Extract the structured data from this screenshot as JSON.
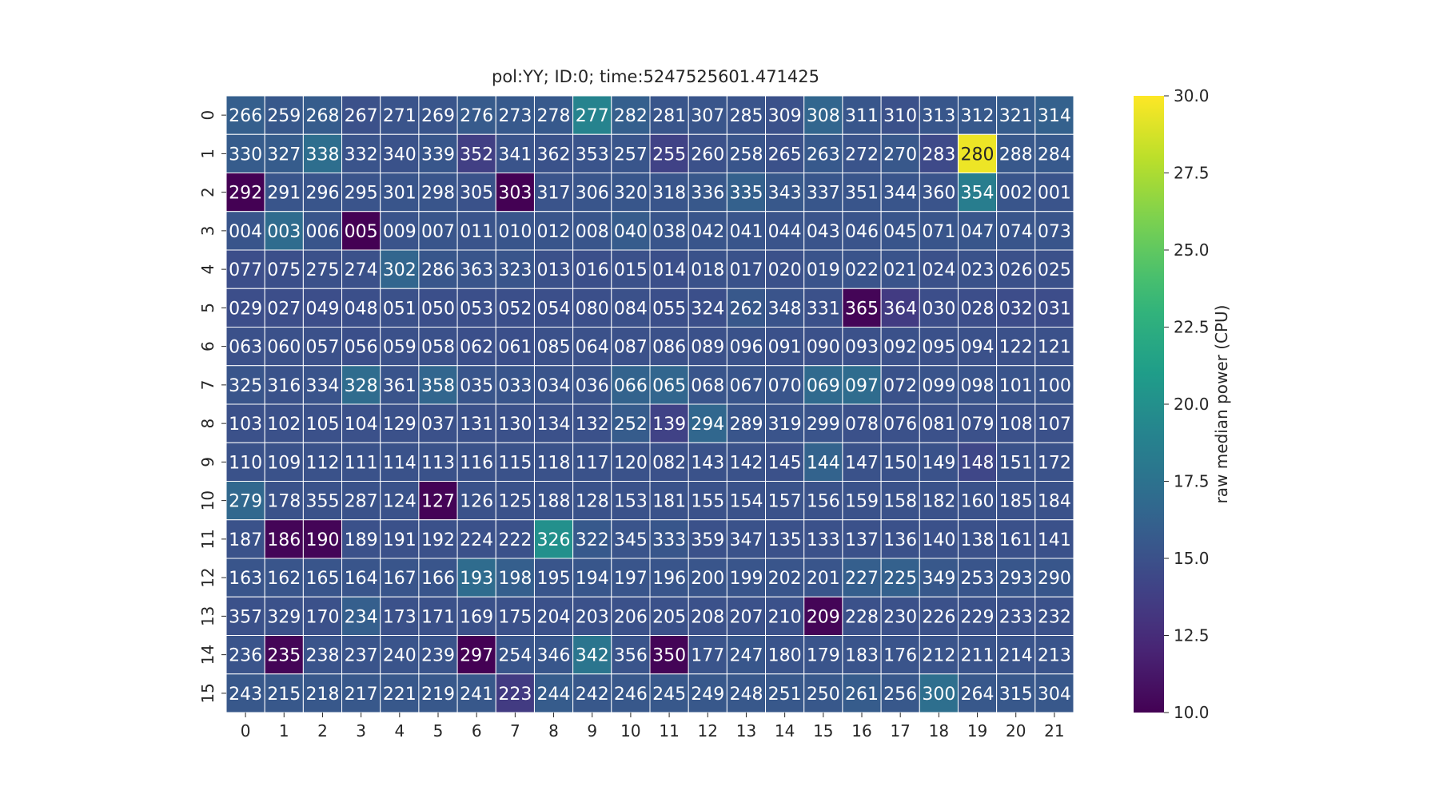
{
  "chart_data": {
    "type": "heatmap",
    "title": "pol:YY; ID:0; time:5247525601.471425",
    "xlabel": "",
    "ylabel": "",
    "colorbar_label": "raw median power (CPU)",
    "colormap": "viridis",
    "vmin": 10.0,
    "vmax": 30.0,
    "colorbar_ticks": [
      "10.0",
      "12.5",
      "15.0",
      "17.5",
      "20.0",
      "22.5",
      "25.0",
      "27.5",
      "30.0"
    ],
    "x_ticks": [
      "0",
      "1",
      "2",
      "3",
      "4",
      "5",
      "6",
      "7",
      "8",
      "9",
      "10",
      "11",
      "12",
      "13",
      "14",
      "15",
      "16",
      "17",
      "18",
      "19",
      "20",
      "21"
    ],
    "y_ticks": [
      "0",
      "1",
      "2",
      "3",
      "4",
      "5",
      "6",
      "7",
      "8",
      "9",
      "10",
      "11",
      "12",
      "13",
      "14",
      "15"
    ],
    "annotations": [
      [
        "266",
        "259",
        "268",
        "267",
        "271",
        "269",
        "276",
        "273",
        "278",
        "277",
        "282",
        "281",
        "307",
        "285",
        "309",
        "308",
        "311",
        "310",
        "313",
        "312",
        "321",
        "314"
      ],
      [
        "330",
        "327",
        "338",
        "332",
        "340",
        "339",
        "352",
        "341",
        "362",
        "353",
        "257",
        "255",
        "260",
        "258",
        "265",
        "263",
        "272",
        "270",
        "283",
        "280",
        "288",
        "284"
      ],
      [
        "292",
        "291",
        "296",
        "295",
        "301",
        "298",
        "305",
        "303",
        "317",
        "306",
        "320",
        "318",
        "336",
        "335",
        "343",
        "337",
        "351",
        "344",
        "360",
        "354",
        "002",
        "001"
      ],
      [
        "004",
        "003",
        "006",
        "005",
        "009",
        "007",
        "011",
        "010",
        "012",
        "008",
        "040",
        "038",
        "042",
        "041",
        "044",
        "043",
        "046",
        "045",
        "071",
        "047",
        "074",
        "073"
      ],
      [
        "077",
        "075",
        "275",
        "274",
        "302",
        "286",
        "363",
        "323",
        "013",
        "016",
        "015",
        "014",
        "018",
        "017",
        "020",
        "019",
        "022",
        "021",
        "024",
        "023",
        "026",
        "025"
      ],
      [
        "029",
        "027",
        "049",
        "048",
        "051",
        "050",
        "053",
        "052",
        "054",
        "080",
        "084",
        "055",
        "324",
        "262",
        "348",
        "331",
        "365",
        "364",
        "030",
        "028",
        "032",
        "031"
      ],
      [
        "063",
        "060",
        "057",
        "056",
        "059",
        "058",
        "062",
        "061",
        "085",
        "064",
        "087",
        "086",
        "089",
        "096",
        "091",
        "090",
        "093",
        "092",
        "095",
        "094",
        "122",
        "121"
      ],
      [
        "325",
        "316",
        "334",
        "328",
        "361",
        "358",
        "035",
        "033",
        "034",
        "036",
        "066",
        "065",
        "068",
        "067",
        "070",
        "069",
        "097",
        "072",
        "099",
        "098",
        "101",
        "100"
      ],
      [
        "103",
        "102",
        "105",
        "104",
        "129",
        "037",
        "131",
        "130",
        "134",
        "132",
        "252",
        "139",
        "294",
        "289",
        "319",
        "299",
        "078",
        "076",
        "081",
        "079",
        "108",
        "107"
      ],
      [
        "110",
        "109",
        "112",
        "111",
        "114",
        "113",
        "116",
        "115",
        "118",
        "117",
        "120",
        "082",
        "143",
        "142",
        "145",
        "144",
        "147",
        "150",
        "149",
        "148",
        "151",
        "172"
      ],
      [
        "279",
        "178",
        "355",
        "287",
        "124",
        "127",
        "126",
        "125",
        "188",
        "128",
        "153",
        "181",
        "155",
        "154",
        "157",
        "156",
        "159",
        "158",
        "182",
        "160",
        "185",
        "184"
      ],
      [
        "187",
        "186",
        "190",
        "189",
        "191",
        "192",
        "224",
        "222",
        "326",
        "322",
        "345",
        "333",
        "359",
        "347",
        "135",
        "133",
        "137",
        "136",
        "140",
        "138",
        "161",
        "141"
      ],
      [
        "163",
        "162",
        "165",
        "164",
        "167",
        "166",
        "193",
        "198",
        "195",
        "194",
        "197",
        "196",
        "200",
        "199",
        "202",
        "201",
        "227",
        "225",
        "349",
        "253",
        "293",
        "290"
      ],
      [
        "357",
        "329",
        "170",
        "234",
        "173",
        "171",
        "169",
        "175",
        "204",
        "203",
        "206",
        "205",
        "208",
        "207",
        "210",
        "209",
        "228",
        "230",
        "226",
        "229",
        "233",
        "232"
      ],
      [
        "236",
        "235",
        "238",
        "237",
        "240",
        "239",
        "297",
        "254",
        "346",
        "342",
        "356",
        "350",
        "177",
        "247",
        "180",
        "179",
        "183",
        "176",
        "212",
        "211",
        "214",
        "213"
      ],
      [
        "243",
        "215",
        "218",
        "217",
        "221",
        "219",
        "241",
        "223",
        "244",
        "242",
        "246",
        "245",
        "249",
        "248",
        "251",
        "250",
        "261",
        "256",
        "300",
        "264",
        "315",
        "304"
      ]
    ],
    "values": [
      [
        16.0,
        15.5,
        15.8,
        15.0,
        15.2,
        15.3,
        15.7,
        15.6,
        15.6,
        19.0,
        16.0,
        15.3,
        15.3,
        15.2,
        15.0,
        16.5,
        15.4,
        15.0,
        15.4,
        15.6,
        15.8,
        16.2
      ],
      [
        15.8,
        15.8,
        17.2,
        15.2,
        15.1,
        15.4,
        13.8,
        15.2,
        15.1,
        15.2,
        15.3,
        14.0,
        15.0,
        15.3,
        15.0,
        15.6,
        15.2,
        15.5,
        14.5,
        29.5,
        15.5,
        15.6
      ],
      [
        10.0,
        15.3,
        15.3,
        15.2,
        15.3,
        15.3,
        15.1,
        10.0,
        15.2,
        15.3,
        15.4,
        15.3,
        15.5,
        16.2,
        15.5,
        15.4,
        15.3,
        15.3,
        15.2,
        18.5,
        15.3,
        15.2
      ],
      [
        15.3,
        17.0,
        15.3,
        10.0,
        15.2,
        15.3,
        15.2,
        15.3,
        15.3,
        15.3,
        15.8,
        15.3,
        15.3,
        15.3,
        15.2,
        15.2,
        15.2,
        15.3,
        15.3,
        15.4,
        15.3,
        15.3
      ],
      [
        14.8,
        14.9,
        15.0,
        15.0,
        16.5,
        15.4,
        15.3,
        15.3,
        15.0,
        14.9,
        15.0,
        14.9,
        15.1,
        15.1,
        15.0,
        15.2,
        15.2,
        15.2,
        15.0,
        15.1,
        15.0,
        15.0
      ],
      [
        14.8,
        14.8,
        14.8,
        14.9,
        15.0,
        14.9,
        14.9,
        14.9,
        14.9,
        14.9,
        15.0,
        14.9,
        14.9,
        15.5,
        15.2,
        15.0,
        10.2,
        13.5,
        14.8,
        14.8,
        14.7,
        14.7
      ],
      [
        15.0,
        15.0,
        15.0,
        14.9,
        15.0,
        15.0,
        14.9,
        14.9,
        15.0,
        15.0,
        15.0,
        15.0,
        15.0,
        15.1,
        15.0,
        15.0,
        15.0,
        15.0,
        15.0,
        15.0,
        15.0,
        15.0
      ],
      [
        15.3,
        15.1,
        15.2,
        17.0,
        15.2,
        16.5,
        15.3,
        15.3,
        15.2,
        15.2,
        16.3,
        16.5,
        15.3,
        15.3,
        15.3,
        16.8,
        17.0,
        15.1,
        15.2,
        15.2,
        15.2,
        15.2
      ],
      [
        15.0,
        15.0,
        15.0,
        15.0,
        15.0,
        15.0,
        15.0,
        15.0,
        15.0,
        15.0,
        15.8,
        14.0,
        16.6,
        15.3,
        15.2,
        15.2,
        15.0,
        15.0,
        15.0,
        15.0,
        15.0,
        15.0
      ],
      [
        15.1,
        15.1,
        15.1,
        15.1,
        15.1,
        15.1,
        15.1,
        15.1,
        15.1,
        15.1,
        15.1,
        15.0,
        15.1,
        15.1,
        15.0,
        16.3,
        15.1,
        15.1,
        15.1,
        14.3,
        15.1,
        15.1
      ],
      [
        16.7,
        15.1,
        15.1,
        15.1,
        15.1,
        10.1,
        15.1,
        15.1,
        15.1,
        15.1,
        15.1,
        15.1,
        15.1,
        15.1,
        15.1,
        15.1,
        15.1,
        15.1,
        15.1,
        15.1,
        15.1,
        15.1
      ],
      [
        15.1,
        10.2,
        10.2,
        15.0,
        15.0,
        15.0,
        15.0,
        15.0,
        20.0,
        15.6,
        15.2,
        15.4,
        15.0,
        15.1,
        15.0,
        15.0,
        15.0,
        15.0,
        15.0,
        15.0,
        15.0,
        15.0
      ],
      [
        15.3,
        15.3,
        15.3,
        15.3,
        15.3,
        15.3,
        17.0,
        16.0,
        15.3,
        15.4,
        15.3,
        15.3,
        15.3,
        15.3,
        15.3,
        15.3,
        16.0,
        16.2,
        15.5,
        15.3,
        15.4,
        15.4
      ],
      [
        15.0,
        15.0,
        15.0,
        16.0,
        15.0,
        15.0,
        15.0,
        15.0,
        15.0,
        15.0,
        15.0,
        15.0,
        15.0,
        15.0,
        15.0,
        10.2,
        15.0,
        15.0,
        15.0,
        15.0,
        15.0,
        15.0
      ],
      [
        15.2,
        10.2,
        15.2,
        15.2,
        15.2,
        15.2,
        10.0,
        15.3,
        15.4,
        17.8,
        15.2,
        10.2,
        15.2,
        15.4,
        15.2,
        15.2,
        15.2,
        15.2,
        15.2,
        15.2,
        15.2,
        15.2
      ],
      [
        15.5,
        15.5,
        15.5,
        15.5,
        15.5,
        15.5,
        15.5,
        13.5,
        15.8,
        15.5,
        15.5,
        15.5,
        15.5,
        15.5,
        15.5,
        15.5,
        15.8,
        15.5,
        17.3,
        15.5,
        15.5,
        15.5
      ]
    ],
    "grid": false
  }
}
